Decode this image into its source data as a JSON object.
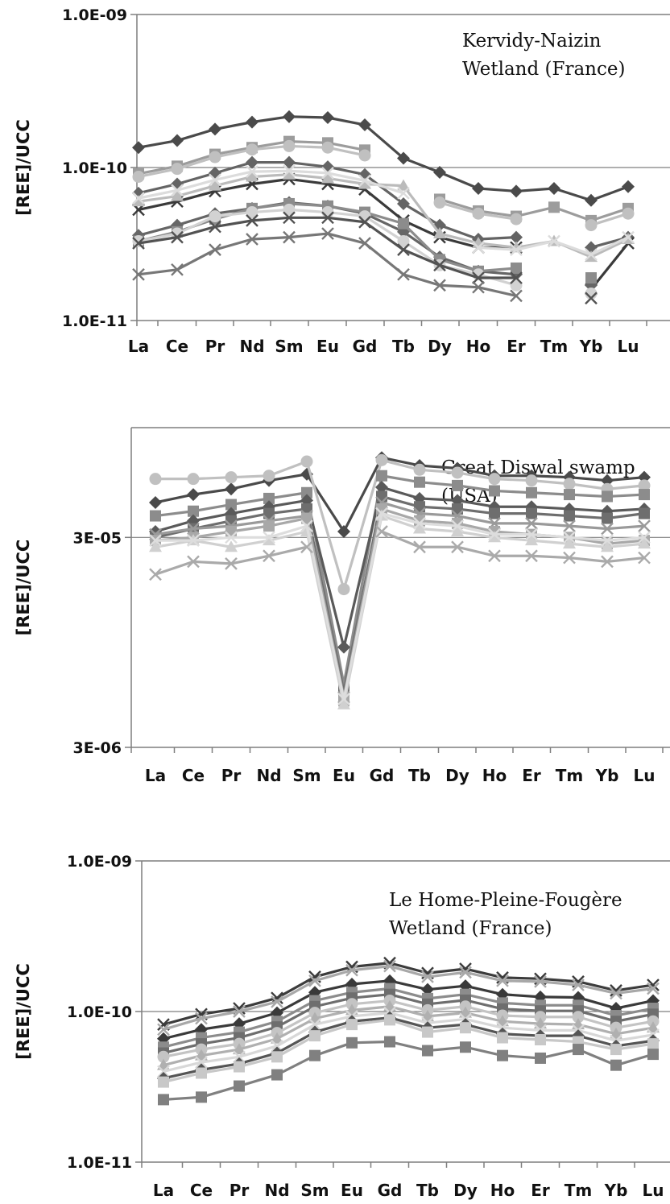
{
  "colors": {
    "palette": [
      "#3c3c3c",
      "#505050",
      "#6e6e6e",
      "#888888",
      "#9a9a9a",
      "#b0b0b0",
      "#c4c4c4",
      "#d6d6d6"
    ],
    "axis": "#7f7f7f",
    "text": "#111111"
  },
  "chart_data": [
    {
      "type": "line",
      "ylabel": "[REE]/UCC",
      "yscale": "log",
      "ylim": [
        1e-11,
        1e-09
      ],
      "yticks": [
        "1.0E-09",
        "1.0E-10",
        "1.0E-11"
      ],
      "annotation": [
        "Kervidy-Naizin",
        "Wetland (France)"
      ],
      "categories": [
        "La",
        "Ce",
        "Pr",
        "Nd",
        "Sm",
        "Eu",
        "Gd",
        "Tb",
        "Dy",
        "Ho",
        "Er",
        "Tm",
        "Yb",
        "Lu"
      ],
      "series": [
        {
          "marker": "diamond",
          "color": "#4a4a4a",
          "values": [
            1.35e-10,
            1.5e-10,
            1.78e-10,
            1.98e-10,
            2.15e-10,
            2.12e-10,
            1.9e-10,
            1.15e-10,
            9.3e-11,
            7.3e-11,
            7e-11,
            7.3e-11,
            6.1e-11,
            7.5e-11
          ]
        },
        {
          "marker": "square",
          "color": "#9c9c9c",
          "values": [
            9.1e-11,
            1.02e-10,
            1.22e-10,
            1.35e-10,
            1.48e-10,
            1.45e-10,
            1.3e-10,
            null,
            6.2e-11,
            5.2e-11,
            4.8e-11,
            5.5e-11,
            4.5e-11,
            5.4e-11
          ]
        },
        {
          "marker": "circle",
          "color": "#c0c0c0",
          "values": [
            8.7e-11,
            9.8e-11,
            1.17e-10,
            1.31e-10,
            1.38e-10,
            1.35e-10,
            1.2e-10,
            null,
            5.9e-11,
            5e-11,
            4.6e-11,
            null,
            4.2e-11,
            5e-11
          ]
        },
        {
          "marker": "diamond",
          "color": "#646464",
          "values": [
            6.8e-11,
            7.8e-11,
            9.2e-11,
            1.08e-10,
            1.08e-10,
            1.01e-10,
            9e-11,
            5.8e-11,
            4.2e-11,
            3.4e-11,
            3.5e-11,
            null,
            3e-11,
            3.5e-11
          ]
        },
        {
          "marker": "x",
          "color": "#3a3a3a",
          "values": [
            5.3e-11,
            6e-11,
            7e-11,
            7.8e-11,
            8.4e-11,
            7.8e-11,
            7.2e-11,
            4.5e-11,
            3.5e-11,
            3e-11,
            3e-11,
            null,
            1.6e-11,
            3.2e-11
          ]
        },
        {
          "marker": "triangle",
          "color": "#bbbbbb",
          "values": [
            6e-11,
            6.5e-11,
            7.6e-11,
            8.7e-11,
            9e-11,
            8.5e-11,
            7.8e-11,
            7.6e-11,
            3.7e-11,
            3.2e-11,
            3e-11,
            3.3e-11,
            2.6e-11,
            3.4e-11
          ]
        },
        {
          "marker": "x",
          "color": "#dcdcdc",
          "values": [
            6.3e-11,
            7.1e-11,
            8.3e-11,
            9.4e-11,
            9.5e-11,
            9.2e-11,
            8.2e-11,
            6.8e-11,
            null,
            3e-11,
            2.9e-11,
            3.3e-11,
            2.7e-11,
            3.5e-11
          ]
        },
        {
          "marker": "diamond",
          "color": "#666666",
          "values": [
            3.6e-11,
            4.2e-11,
            5e-11,
            5.4e-11,
            5.9e-11,
            5.6e-11,
            5e-11,
            3.8e-11,
            2.6e-11,
            2.1e-11,
            2e-11,
            null,
            1.7e-11,
            null
          ]
        },
        {
          "marker": "square",
          "color": "#8c8c8c",
          "values": [
            3.3e-11,
            3.8e-11,
            4.6e-11,
            5.4e-11,
            5.8e-11,
            5.6e-11,
            5.1e-11,
            4.3e-11,
            2.5e-11,
            2.1e-11,
            2.2e-11,
            null,
            1.9e-11,
            null
          ]
        },
        {
          "marker": "circle",
          "color": "#d2d2d2",
          "values": [
            3.3e-11,
            3.7e-11,
            4.8e-11,
            5.1e-11,
            5.3e-11,
            5.1e-11,
            4.8e-11,
            3.3e-11,
            2.3e-11,
            2e-11,
            1.7e-11,
            null,
            1.5e-11,
            null
          ]
        },
        {
          "marker": "x",
          "color": "#525252",
          "values": [
            3.2e-11,
            3.5e-11,
            4.1e-11,
            4.5e-11,
            4.7e-11,
            4.7e-11,
            4.4e-11,
            2.9e-11,
            2.3e-11,
            1.9e-11,
            1.9e-11,
            null,
            1.4e-11,
            null
          ]
        },
        {
          "marker": "x",
          "color": "#777777",
          "values": [
            2e-11,
            2.15e-11,
            2.9e-11,
            3.4e-11,
            3.5e-11,
            3.7e-11,
            3.2e-11,
            2e-11,
            1.7e-11,
            1.65e-11,
            1.45e-11,
            null,
            null,
            null
          ]
        }
      ]
    },
    {
      "type": "line",
      "ylabel": "[REE]/UCC",
      "yscale": "log",
      "ylim": [
        3e-06,
        0.0001
      ],
      "yticks": [
        "3E-05",
        "3E-06"
      ],
      "annotation": [
        "Great Diswal swamp",
        "(USA)"
      ],
      "categories": [
        "La",
        "Ce",
        "Pr",
        "Nd",
        "Sm",
        "Eu",
        "Gd",
        "Tb",
        "Dy",
        "Ho",
        "Er",
        "Tm",
        "Yb",
        "Lu"
      ],
      "series": [
        {
          "marker": "diamond",
          "color": "#4a4a4a",
          "values": [
            4.4e-05,
            4.8e-05,
            5.1e-05,
            5.6e-05,
            6e-05,
            3.2e-05,
            7.2e-05,
            6.6e-05,
            6.4e-05,
            5.9e-05,
            5.9e-05,
            5.8e-05,
            5.6e-05,
            5.8e-05
          ]
        },
        {
          "marker": "circle",
          "color": "#c0c0c0",
          "values": [
            5.7e-05,
            5.7e-05,
            5.8e-05,
            5.9e-05,
            6.9e-05,
            1.7e-05,
            7e-05,
            6.3e-05,
            6.1e-05,
            5.7e-05,
            5.6e-05,
            5.4e-05,
            5.1e-05,
            5.3e-05
          ]
        },
        {
          "marker": "square",
          "color": "#8c8c8c",
          "values": [
            3.8e-05,
            4e-05,
            4.3e-05,
            4.6e-05,
            4.9e-05,
            6e-06,
            5.9e-05,
            5.5e-05,
            5.3e-05,
            5e-05,
            4.9e-05,
            4.8e-05,
            4.7e-05,
            4.8e-05
          ]
        },
        {
          "marker": "diamond",
          "color": "#5a5a5a",
          "values": [
            3.2e-05,
            3.6e-05,
            3.9e-05,
            4.2e-05,
            4.5e-05,
            9e-06,
            5.2e-05,
            4.6e-05,
            4.5e-05,
            4.2e-05,
            4.2e-05,
            4.1e-05,
            4e-05,
            4.1e-05
          ]
        },
        {
          "marker": "square",
          "color": "#6e6e6e",
          "values": [
            3e-05,
            3.3e-05,
            3.6e-05,
            3.9e-05,
            4.1e-05,
            5.5e-06,
            4.7e-05,
            4.2e-05,
            4.1e-05,
            3.9e-05,
            3.9e-05,
            3.8e-05,
            3.7e-05,
            3.9e-05
          ]
        },
        {
          "marker": "x",
          "color": "#9a9a9a",
          "values": [
            3.1e-05,
            3.3e-05,
            3.4e-05,
            3.6e-05,
            3.8e-05,
            5.2e-06,
            4.4e-05,
            3.9e-05,
            3.8e-05,
            3.5e-05,
            3.5e-05,
            3.4e-05,
            3.3e-05,
            3.4e-05
          ]
        },
        {
          "marker": "square",
          "color": "#a8a8a8",
          "values": [
            2.9e-05,
            3e-05,
            3.2e-05,
            3.4e-05,
            3.7e-05,
            5e-06,
            4.1e-05,
            3.6e-05,
            3.5e-05,
            3.2e-05,
            3.1e-05,
            3e-05,
            2.8e-05,
            2.9e-05
          ]
        },
        {
          "marker": "triangle",
          "color": "#d0d0d0",
          "values": [
            2.7e-05,
            2.9e-05,
            2.7e-05,
            2.9e-05,
            3.2e-05,
            4.8e-06,
            3.8e-05,
            3.3e-05,
            3.2e-05,
            3e-05,
            2.9e-05,
            2.8e-05,
            2.7e-05,
            2.8e-05
          ]
        },
        {
          "marker": "x",
          "color": "#dddddd",
          "values": [
            2.9e-05,
            2.9e-05,
            3e-05,
            3e-05,
            3.4e-05,
            5.1e-06,
            3.9e-05,
            3.5e-05,
            3.4e-05,
            3.1e-05,
            3.1e-05,
            3e-05,
            2.9e-05,
            3e-05
          ]
        },
        {
          "marker": "x",
          "color": "#aaaaaa",
          "values": [
            2e-05,
            2.3e-05,
            2.25e-05,
            2.45e-05,
            2.7e-05,
            null,
            3.2e-05,
            2.7e-05,
            2.7e-05,
            2.45e-05,
            2.45e-05,
            2.4e-05,
            2.3e-05,
            2.4e-05
          ]
        }
      ]
    },
    {
      "type": "line",
      "ylabel": "[REE]/UCC",
      "yscale": "log",
      "ylim": [
        1e-11,
        1e-09
      ],
      "yticks": [
        "1.0E-09",
        "1.0E-10",
        "1.0E-11"
      ],
      "annotation": [
        "Le Home-Pleine-Fougère",
        "Wetland (France)"
      ],
      "categories": [
        "La",
        "Ce",
        "Pr",
        "Nd",
        "Sm",
        "Eu",
        "Gd",
        "Tb",
        "Dy",
        "Ho",
        "Er",
        "Tm",
        "Yb",
        "Lu"
      ],
      "series": [
        {
          "marker": "x",
          "color": "#3c3c3c",
          "values": [
            8.2e-11,
            9.6e-11,
            1.05e-10,
            1.23e-10,
            1.7e-10,
            1.98e-10,
            2.1e-10,
            1.8e-10,
            1.92e-10,
            1.68e-10,
            1.65e-10,
            1.58e-10,
            1.38e-10,
            1.5e-10
          ]
        },
        {
          "marker": "x",
          "color": "#a8a8a8",
          "values": [
            7.6e-11,
            9e-11,
            1e-10,
            1.16e-10,
            1.6e-10,
            1.88e-10,
            2e-10,
            1.7e-10,
            1.82e-10,
            1.6e-10,
            1.58e-10,
            1.5e-10,
            1.32e-10,
            1.42e-10
          ]
        },
        {
          "marker": "diamond",
          "color": "#3a3a3a",
          "values": [
            6.6e-11,
            7.6e-11,
            8.3e-11,
            9.8e-11,
            1.34e-10,
            1.52e-10,
            1.6e-10,
            1.4e-10,
            1.48e-10,
            1.3e-10,
            1.25e-10,
            1.24e-10,
            1.05e-10,
            1.18e-10
          ]
        },
        {
          "marker": "square",
          "color": "#8c8c8c",
          "values": [
            5.8e-11,
            6.7e-11,
            7.3e-11,
            8.6e-11,
            1.18e-10,
            1.34e-10,
            1.42e-10,
            1.22e-10,
            1.3e-10,
            1.14e-10,
            1.1e-10,
            1.1e-10,
            9.4e-11,
            1.05e-10
          ]
        },
        {
          "marker": "square",
          "color": "#6e6e6e",
          "values": [
            5.3e-11,
            6.1e-11,
            6.7e-11,
            7.9e-11,
            1.08e-10,
            1.23e-10,
            1.3e-10,
            1.12e-10,
            1.19e-10,
            1.04e-10,
            1.01e-10,
            1.01e-10,
            8.6e-11,
            9.6e-11
          ]
        },
        {
          "marker": "circle",
          "color": "#c4c4c4",
          "values": [
            5e-11,
            5.6e-11,
            6.1e-11,
            7.2e-11,
            9.8e-11,
            1.12e-10,
            1.18e-10,
            1.02e-10,
            1.08e-10,
            9.4e-11,
            9.2e-11,
            9.2e-11,
            7.8e-11,
            8.6e-11
          ]
        },
        {
          "marker": "triangle",
          "color": "#b0b0b0",
          "values": [
            4.4e-11,
            5.1e-11,
            5.6e-11,
            6.6e-11,
            9e-11,
            1.02e-10,
            1.08e-10,
            9.3e-11,
            9.8e-11,
            8.6e-11,
            8.3e-11,
            8.2e-11,
            7.1e-11,
            7.8e-11
          ]
        },
        {
          "marker": "x",
          "color": "#d8d8d8",
          "values": [
            4e-11,
            4.6e-11,
            5e-11,
            5.9e-11,
            8.2e-11,
            9.3e-11,
            9.8e-11,
            8.4e-11,
            8.9e-11,
            7.8e-11,
            7.5e-11,
            7.5e-11,
            6.4e-11,
            7e-11
          ]
        },
        {
          "marker": "diamond",
          "color": "#555555",
          "values": [
            3.6e-11,
            4.1e-11,
            4.5e-11,
            5.3e-11,
            7.3e-11,
            8.6e-11,
            9.1e-11,
            7.8e-11,
            8.2e-11,
            7.1e-11,
            6.9e-11,
            6.9e-11,
            5.9e-11,
            6.4e-11
          ]
        },
        {
          "marker": "square",
          "color": "#c8c8c8",
          "values": [
            3.4e-11,
            3.9e-11,
            4.3e-11,
            5e-11,
            6.9e-11,
            8.2e-11,
            8.8e-11,
            7.3e-11,
            7.8e-11,
            6.7e-11,
            6.5e-11,
            6.3e-11,
            5.6e-11,
            6.1e-11
          ]
        },
        {
          "marker": "square",
          "color": "#808080",
          "values": [
            2.6e-11,
            2.7e-11,
            3.2e-11,
            3.8e-11,
            5.1e-11,
            6.2e-11,
            6.3e-11,
            5.5e-11,
            5.8e-11,
            5.1e-11,
            4.9e-11,
            5.6e-11,
            4.4e-11,
            5.2e-11
          ]
        }
      ]
    }
  ]
}
